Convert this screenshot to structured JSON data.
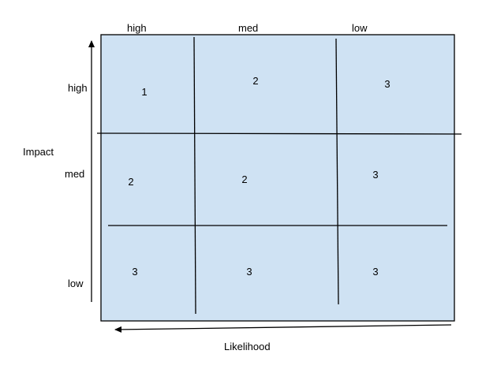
{
  "column_headers": [
    "high",
    "med",
    "low"
  ],
  "row_headers": [
    "high",
    "med",
    "low"
  ],
  "y_axis_label": "Impact",
  "x_axis_label": "Likelihood",
  "grid": [
    [
      "1",
      "2",
      "3"
    ],
    [
      "2",
      "2",
      "3"
    ],
    [
      "3",
      "3",
      "3"
    ]
  ],
  "colors": {
    "fill": "#cfe2f3",
    "line": "#000000"
  }
}
